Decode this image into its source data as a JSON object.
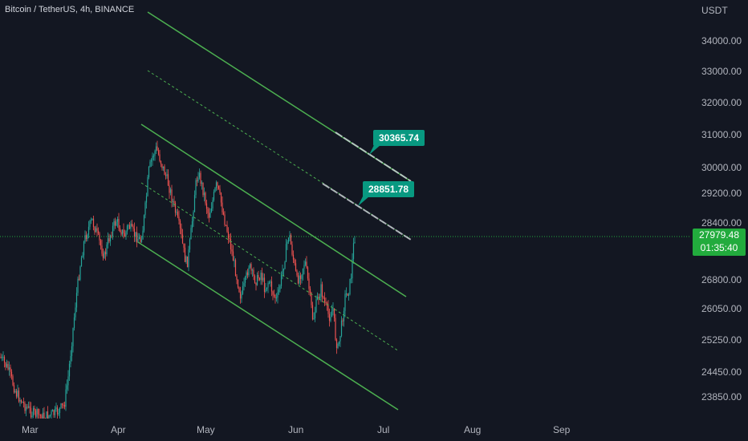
{
  "header": {
    "symbol": "Bitcoin / TetherUS, 4h, BINANCE"
  },
  "price_axis": {
    "currency": "USDT",
    "ticks": [
      "34000.00",
      "33000.00",
      "32000.00",
      "31000.00",
      "30000.00",
      "29200.00",
      "28400.00",
      "26800.00",
      "26050.00",
      "25250.00",
      "24450.00",
      "23850.00"
    ],
    "current_price": "27979.48",
    "countdown": "01:35:40"
  },
  "time_axis": {
    "ticks": [
      "Mar",
      "Apr",
      "May",
      "Jun",
      "Jul",
      "Aug",
      "Sep"
    ]
  },
  "callouts": {
    "upper": "30365.74",
    "lower": "28851.78"
  },
  "colors": {
    "background": "#131722",
    "candle_up": "#26a69a",
    "candle_down": "#ef5350",
    "channel": "#4caf50",
    "price_label": "#22ab3d",
    "callout": "#089981"
  }
}
